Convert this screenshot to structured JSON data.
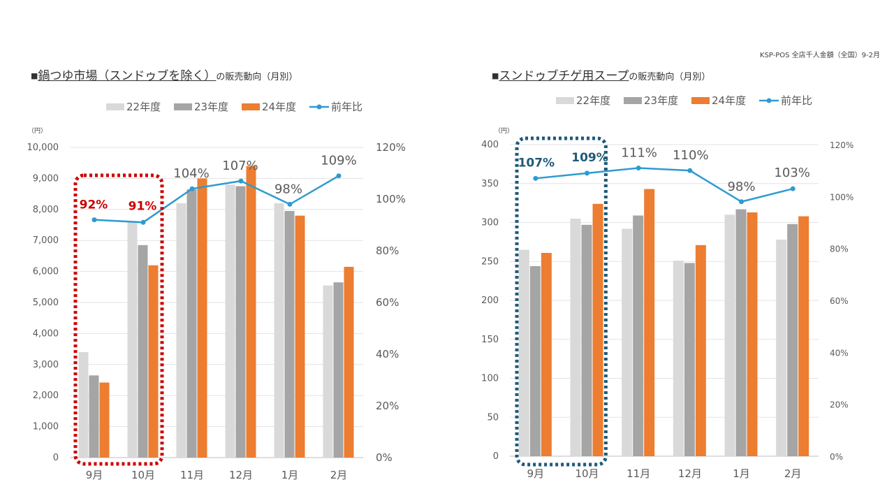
{
  "source_note": "KSP-POS 全店千人金額（全国）9-2月",
  "chart_data": [
    {
      "type": "bar",
      "title_prefix": "■",
      "title_main": "鍋つゆ市場（スンドゥブを除く）",
      "title_suffix": "の販売動向（月別）",
      "y_unit_label": "（円）",
      "categories": [
        "9月",
        "10月",
        "11月",
        "12月",
        "1月",
        "2月"
      ],
      "series": [
        {
          "name": "22年度",
          "color": "#d9d9d9",
          "values": [
            3400,
            7600,
            8200,
            8800,
            8200,
            5550
          ]
        },
        {
          "name": "23年度",
          "color": "#a5a5a5",
          "values": [
            2650,
            6850,
            8650,
            8750,
            7950,
            5650
          ]
        },
        {
          "name": "24年度",
          "color": "#ed7d31",
          "values": [
            2420,
            6200,
            9000,
            9400,
            7800,
            6150
          ]
        }
      ],
      "line": {
        "name": "前年比",
        "color": "#2e9bd0",
        "values": [
          92,
          91,
          104,
          107,
          98,
          109
        ]
      },
      "point_labels": [
        "92%",
        "91%",
        "104%",
        "107%",
        "98%",
        "109%"
      ],
      "highlighted_labels": [
        0,
        1
      ],
      "ylim": [
        0,
        10000
      ],
      "y_ticks": [
        0,
        1000,
        2000,
        3000,
        4000,
        5000,
        6000,
        7000,
        8000,
        9000,
        10000
      ],
      "y_tick_labels": [
        "0",
        "1,000",
        "2,000",
        "3,000",
        "4,000",
        "5,000",
        "6,000",
        "7,000",
        "8,000",
        "9,000",
        "10,000"
      ],
      "y2lim": [
        0,
        120
      ],
      "y2_ticks": [
        0,
        20,
        40,
        60,
        80,
        100,
        120
      ],
      "y2_tick_labels": [
        "0%",
        "20%",
        "40%",
        "60%",
        "80%",
        "100%",
        "120%"
      ],
      "highlight_color": "#cc0000",
      "highlight_range": [
        0,
        1
      ]
    },
    {
      "type": "bar",
      "title_prefix": "■",
      "title_main": "スンドゥブチゲ用スープ",
      "title_suffix": "の販売動向（月別）",
      "y_unit_label": "（円）",
      "categories": [
        "9月",
        "10月",
        "11月",
        "12月",
        "1月",
        "2月"
      ],
      "series": [
        {
          "name": "22年度",
          "color": "#d9d9d9",
          "values": [
            265,
            305,
            292,
            251,
            310,
            278
          ]
        },
        {
          "name": "23年度",
          "color": "#a5a5a5",
          "values": [
            244,
            297,
            309,
            248,
            317,
            298
          ]
        },
        {
          "name": "24年度",
          "color": "#ed7d31",
          "values": [
            261,
            324,
            343,
            271,
            313,
            308
          ]
        }
      ],
      "line": {
        "name": "前年比",
        "color": "#2e9bd0",
        "values": [
          107,
          109,
          111,
          110,
          98,
          103
        ]
      },
      "point_labels": [
        "107%",
        "109%",
        "111%",
        "110%",
        "98%",
        "103%"
      ],
      "highlighted_labels": [
        0,
        1
      ],
      "ylim": [
        0,
        400
      ],
      "y_ticks": [
        0,
        50,
        100,
        150,
        200,
        250,
        300,
        350,
        400
      ],
      "y_tick_labels": [
        "0",
        "50",
        "100",
        "150",
        "200",
        "250",
        "300",
        "350",
        "400"
      ],
      "y2lim": [
        0,
        120
      ],
      "y2_ticks": [
        0,
        20,
        40,
        60,
        80,
        100,
        120
      ],
      "y2_tick_labels": [
        "0%",
        "20%",
        "40%",
        "60%",
        "80%",
        "100%",
        "120%"
      ],
      "highlight_color": "#1f5a78",
      "highlight_range": [
        0,
        1
      ]
    }
  ]
}
